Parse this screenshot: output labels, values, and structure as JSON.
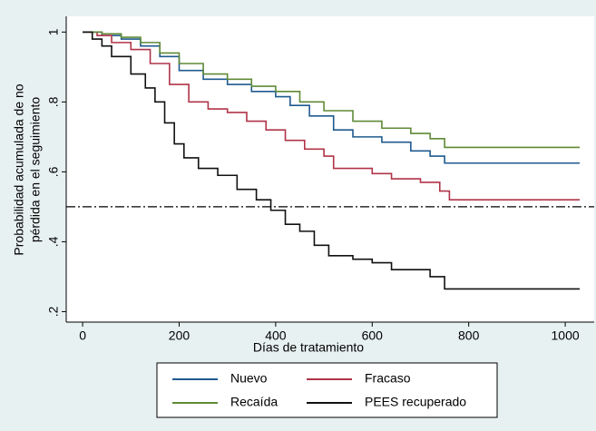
{
  "chart_data": {
    "type": "step",
    "xlabel": "Días de tratamiento",
    "ylabel": [
      "Probabilidad acumulada de no",
      "pérdida en el seguimiento"
    ],
    "xlim": [
      -34,
      1060
    ],
    "ylim": [
      0.17,
      1.045
    ],
    "xticks": [
      0,
      200,
      400,
      600,
      800,
      1000
    ],
    "yticks": [
      {
        "value": 0.2,
        "label": ".2"
      },
      {
        "value": 0.4,
        "label": ".4"
      },
      {
        "value": 0.6,
        "label": ".6"
      },
      {
        "value": 0.8,
        "label": ".8"
      },
      1
    ],
    "reference_line": 0.5,
    "legend": "bottom",
    "series": [
      {
        "name": "Nuevo",
        "color": "#1f5a8f",
        "x": [
          0,
          40,
          80,
          120,
          160,
          200,
          250,
          300,
          350,
          400,
          430,
          470,
          520,
          560,
          620,
          680,
          720,
          750,
          1030
        ],
        "values": [
          1,
          0.99,
          0.98,
          0.96,
          0.93,
          0.89,
          0.865,
          0.85,
          0.83,
          0.815,
          0.79,
          0.76,
          0.72,
          0.7,
          0.685,
          0.66,
          0.645,
          0.625,
          0.625
        ]
      },
      {
        "name": "Fracaso",
        "color": "#b03448",
        "x": [
          0,
          30,
          60,
          100,
          140,
          180,
          220,
          260,
          300,
          340,
          380,
          420,
          460,
          500,
          520,
          600,
          640,
          700,
          740,
          760,
          1030
        ],
        "values": [
          1,
          0.99,
          0.97,
          0.95,
          0.91,
          0.85,
          0.8,
          0.78,
          0.77,
          0.745,
          0.72,
          0.69,
          0.665,
          0.645,
          0.61,
          0.595,
          0.58,
          0.57,
          0.545,
          0.52,
          0.52
        ]
      },
      {
        "name": "Recaída",
        "color": "#5f8a35",
        "x": [
          0,
          40,
          80,
          120,
          160,
          200,
          250,
          300,
          350,
          400,
          450,
          500,
          560,
          620,
          680,
          720,
          750,
          1030
        ],
        "values": [
          1,
          0.995,
          0.985,
          0.97,
          0.94,
          0.91,
          0.88,
          0.865,
          0.845,
          0.83,
          0.8,
          0.775,
          0.745,
          0.725,
          0.71,
          0.695,
          0.67,
          0.67
        ]
      },
      {
        "name": "PEES recuperado",
        "color": "#111111",
        "x": [
          0,
          20,
          40,
          60,
          100,
          130,
          150,
          170,
          190,
          210,
          240,
          280,
          320,
          360,
          390,
          420,
          450,
          480,
          510,
          560,
          600,
          640,
          720,
          750,
          1030
        ],
        "values": [
          1,
          0.98,
          0.96,
          0.93,
          0.88,
          0.84,
          0.8,
          0.74,
          0.68,
          0.64,
          0.61,
          0.59,
          0.55,
          0.52,
          0.49,
          0.45,
          0.43,
          0.39,
          0.36,
          0.35,
          0.34,
          0.32,
          0.3,
          0.265,
          0.265
        ]
      }
    ]
  }
}
